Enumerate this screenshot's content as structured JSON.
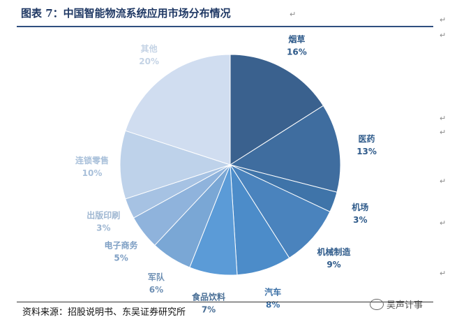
{
  "figure": {
    "title": "图表 7：中国智能物流系统应用市场分布情况",
    "source": "资料来源：招股说明书、东吴证券研究所",
    "watermark": "吴声计事"
  },
  "chart_data": {
    "type": "pie",
    "title": "",
    "slices": [
      {
        "label": "烟草",
        "value": 16,
        "value_text": "16%",
        "color": "#3a618e",
        "label_color": "#2e5a8a"
      },
      {
        "label": "医药",
        "value": 13,
        "value_text": "13%",
        "color": "#3f6d9f",
        "label_color": "#2e5a8a"
      },
      {
        "label": "机场",
        "value": 3,
        "value_text": "3%",
        "color": "#3f74a9",
        "label_color": "#2e5a8a"
      },
      {
        "label": "机械制造",
        "value": 9,
        "value_text": "9%",
        "color": "#4a83bd",
        "label_color": "#2e5a8a"
      },
      {
        "label": "汽车",
        "value": 8,
        "value_text": "8%",
        "color": "#4c8cc9",
        "label_color": "#3a6fa6"
      },
      {
        "label": "食品饮料",
        "value": 7,
        "value_text": "7%",
        "color": "#5b9bd7",
        "label_color": "#4a6f96"
      },
      {
        "label": "军队",
        "value": 6,
        "value_text": "6%",
        "color": "#7aa7d5",
        "label_color": "#6f90b4"
      },
      {
        "label": "电子商务",
        "value": 5,
        "value_text": "5%",
        "color": "#8fb3dc",
        "label_color": "#7e9fc4"
      },
      {
        "label": "出版印刷",
        "value": 3,
        "value_text": "3%",
        "color": "#a6c2e3",
        "label_color": "#9fb7d2"
      },
      {
        "label": "连锁零售",
        "value": 10,
        "value_text": "10%",
        "color": "#bed2ea",
        "label_color": "#a9c0da"
      },
      {
        "label": "其他",
        "value": 20,
        "value_text": "20%",
        "color": "#d0ddf0",
        "label_color": "#c4d3e5"
      }
    ],
    "start_angle_deg": 0,
    "direction": "clockwise",
    "legend": "none",
    "data_labels": "outside"
  }
}
